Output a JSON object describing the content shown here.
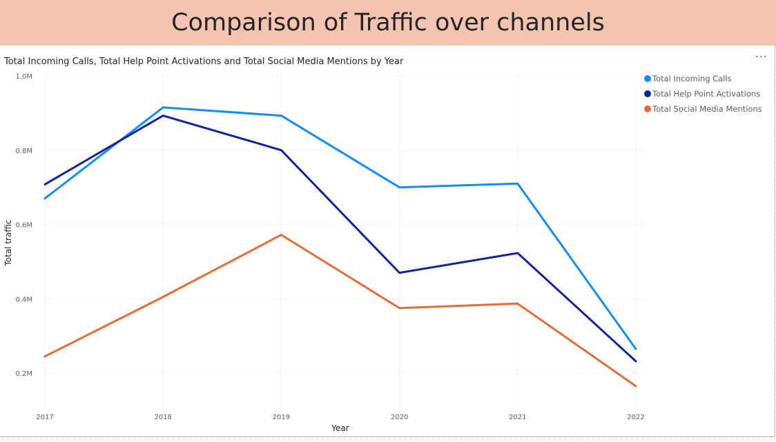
{
  "header": {
    "title": "Comparison of Traffic over channels"
  },
  "visual": {
    "more_options_label": "..."
  },
  "chart_data": {
    "type": "line",
    "title": "Total Incoming Calls, Total Help Point Activations and Total Social Media Mentions by Year",
    "xlabel": "Year",
    "ylabel": "Total traffic",
    "categories": [
      "2017",
      "2018",
      "2019",
      "2020",
      "2021",
      "2022"
    ],
    "ylim": [
      0.1,
      1.0
    ],
    "yticks": [
      {
        "value": 0.2,
        "label": "0.2M"
      },
      {
        "value": 0.4,
        "label": "0.4M"
      },
      {
        "value": 0.6,
        "label": "0.6M"
      },
      {
        "value": 0.8,
        "label": "0.8M"
      },
      {
        "value": 1.0,
        "label": "1.0M"
      }
    ],
    "grid": true,
    "legend_position": "top-right",
    "series": [
      {
        "name": "Total Incoming Calls",
        "color": "#118dff",
        "values": [
          0.67,
          0.915,
          0.893,
          0.7,
          0.71,
          0.265
        ]
      },
      {
        "name": "Total Help Point Activations",
        "color": "#12239e",
        "values": [
          0.708,
          0.893,
          0.8,
          0.47,
          0.523,
          0.232
        ]
      },
      {
        "name": "Total Social Media Mentions",
        "color": "#e66c37",
        "values": [
          0.245,
          0.405,
          0.572,
          0.375,
          0.387,
          0.165
        ]
      }
    ]
  }
}
